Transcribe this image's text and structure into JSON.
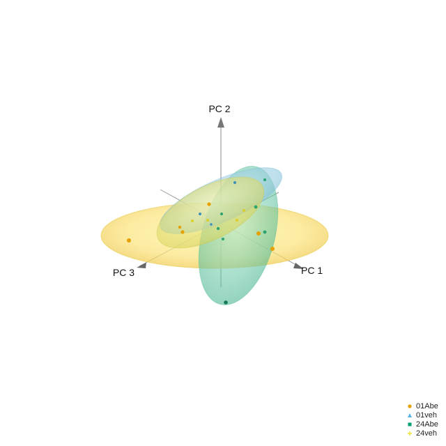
{
  "chart_data": {
    "type": "scatter",
    "title": "",
    "axes": [
      {
        "name": "x",
        "label": "PC 1"
      },
      {
        "name": "y",
        "label": "PC 2"
      },
      {
        "name": "z",
        "label": "PC 3"
      }
    ],
    "grid": false,
    "legend_position": "bottom-right",
    "ellipsoids": true,
    "series": [
      {
        "name": "01Abe",
        "marker": "circle",
        "color": "#E6A100"
      },
      {
        "name": "01veh",
        "marker": "triangle",
        "color": "#56B4E9"
      },
      {
        "name": "24Abe",
        "marker": "square",
        "color": "#009E73"
      },
      {
        "name": "24veh",
        "marker": "plus",
        "color": "#F0E442"
      }
    ]
  }
}
